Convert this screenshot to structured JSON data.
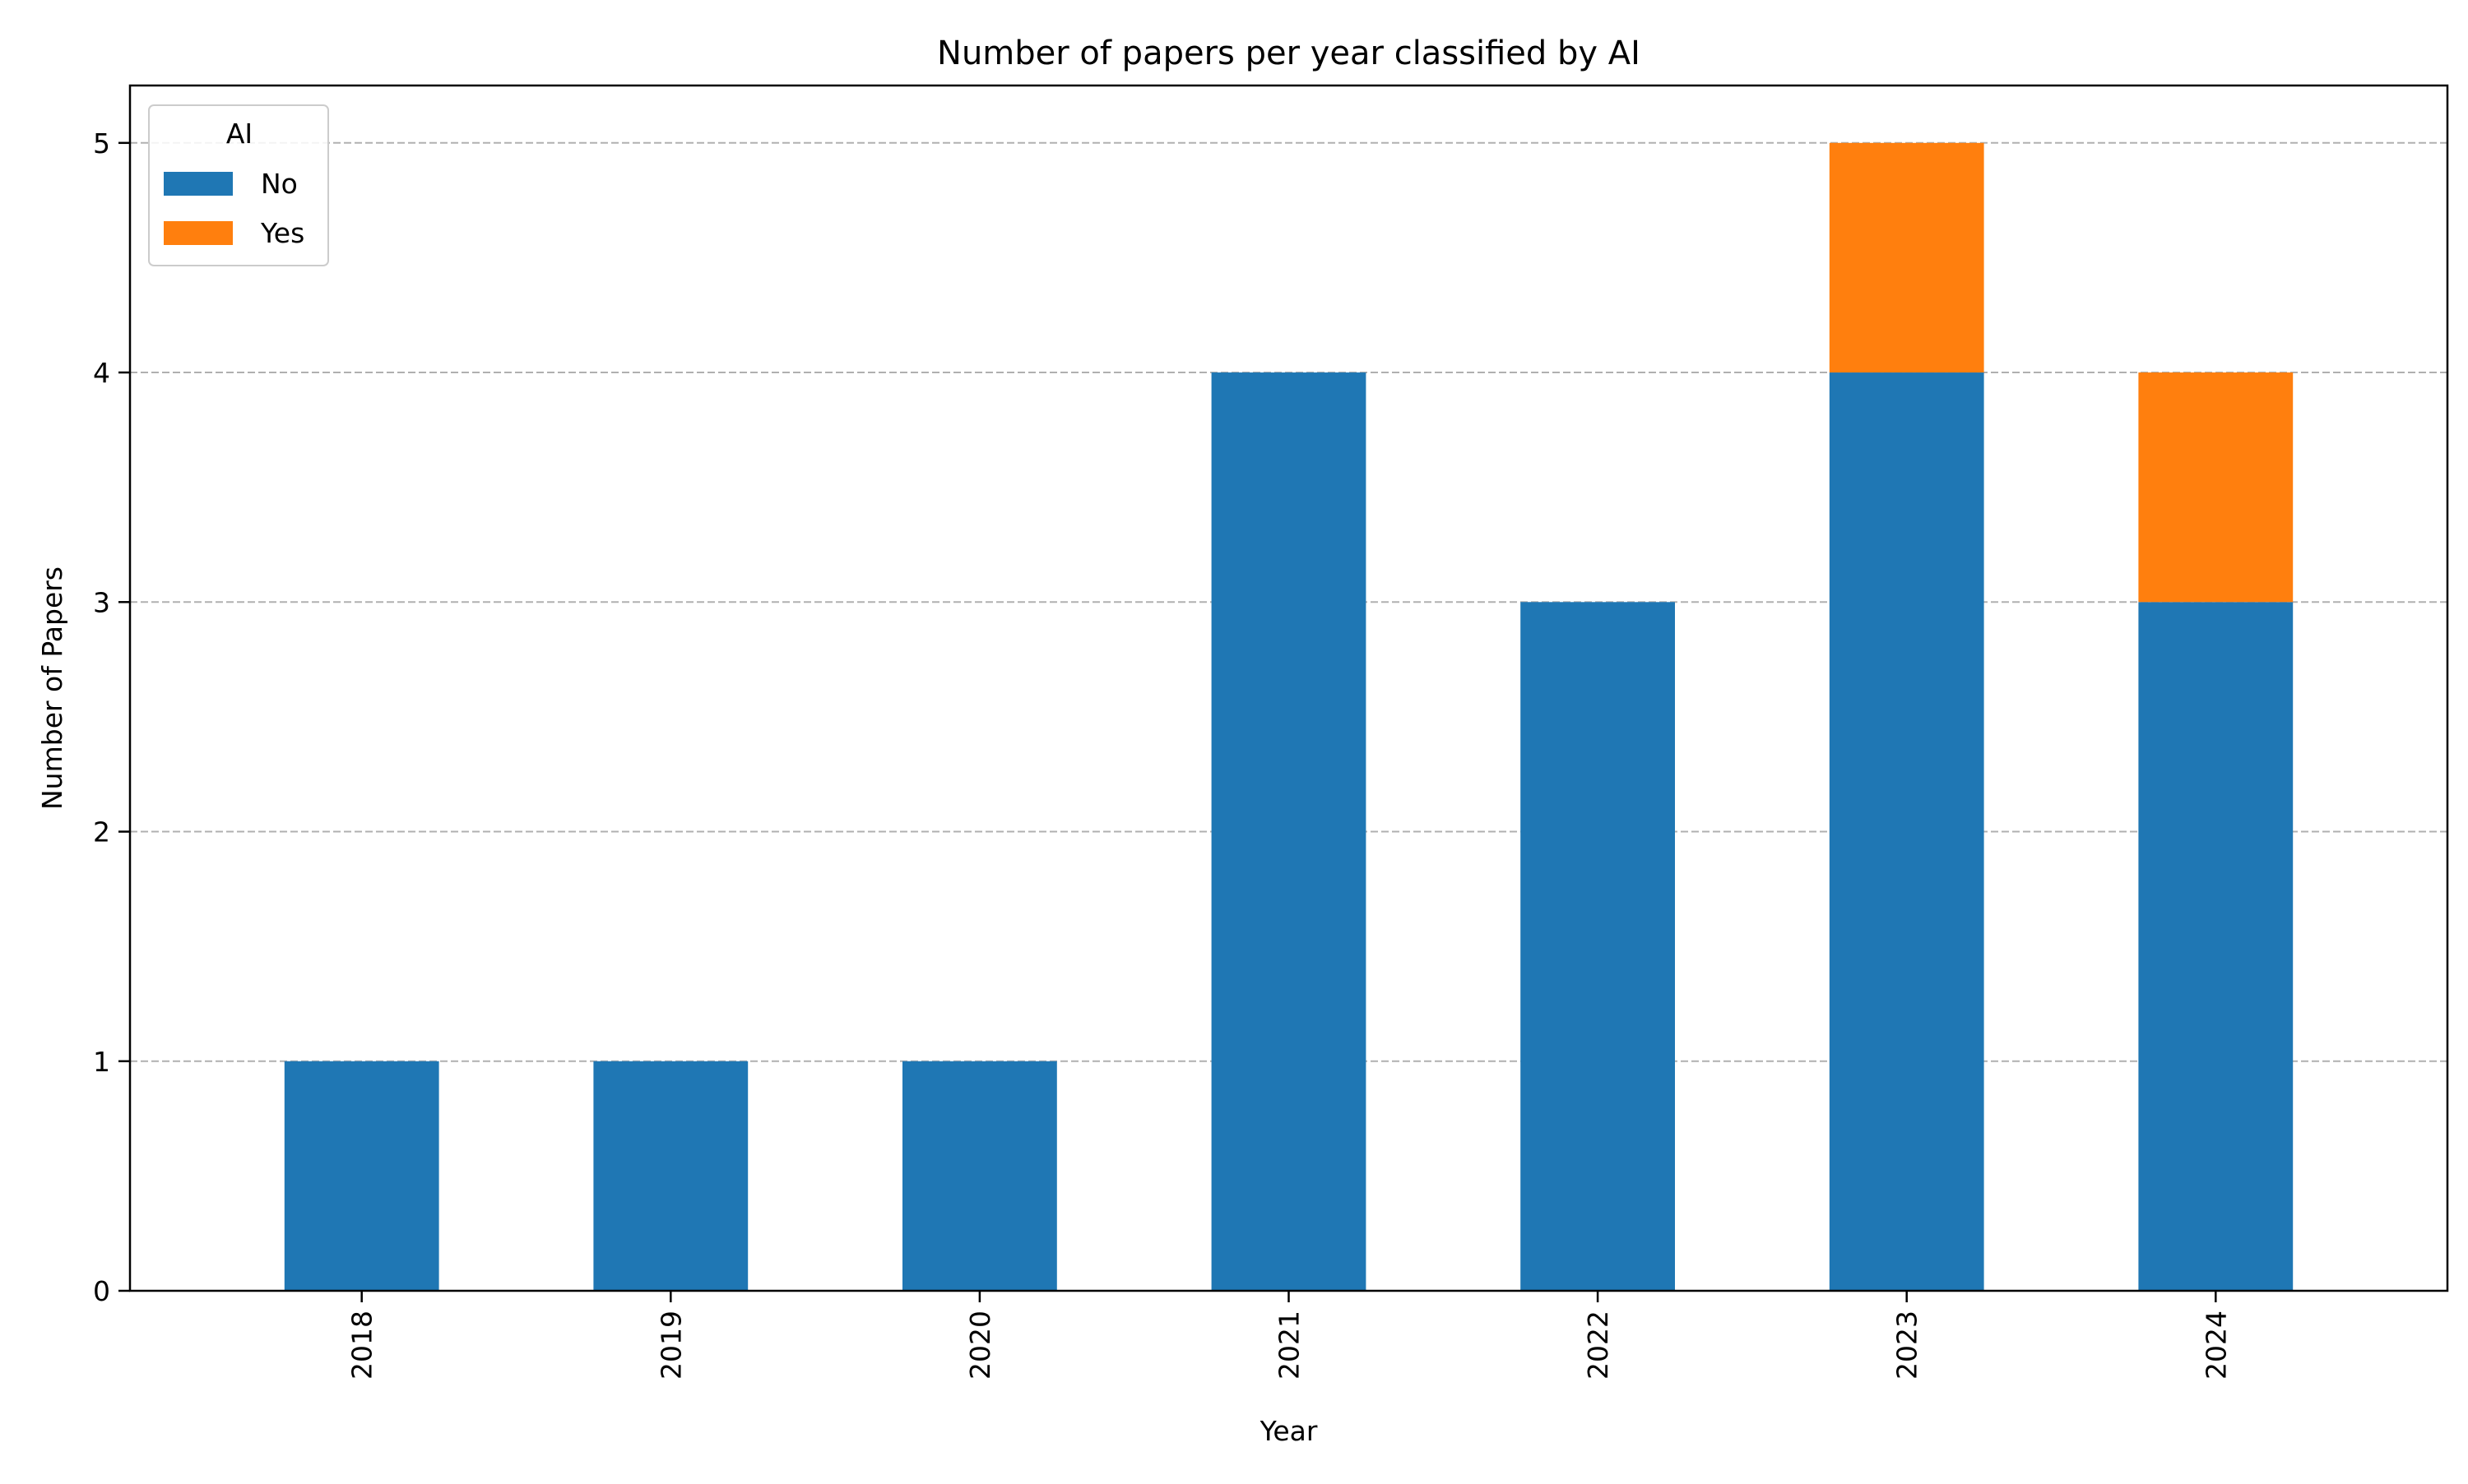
{
  "chart_data": {
    "type": "bar",
    "stacked": true,
    "title": "Number of papers per year classified by AI",
    "xlabel": "Year",
    "ylabel": "Number of Papers",
    "categories": [
      "2018",
      "2019",
      "2020",
      "2021",
      "2022",
      "2023",
      "2024"
    ],
    "series": [
      {
        "name": "No",
        "values": [
          1,
          1,
          1,
          4,
          3,
          4,
          3
        ],
        "color": "#1f77b4"
      },
      {
        "name": "Yes",
        "values": [
          0,
          0,
          0,
          0,
          0,
          1,
          1
        ],
        "color": "#ff7f0e"
      }
    ],
    "ylim": [
      0,
      5.25
    ],
    "yticks": [
      0,
      1,
      2,
      3,
      4,
      5
    ],
    "grid": {
      "axis": "y",
      "style": "dashed",
      "color": "#b0b0b0"
    },
    "legend": {
      "title": "AI",
      "position": "top-left"
    },
    "xtick_rotation": "vertical"
  }
}
